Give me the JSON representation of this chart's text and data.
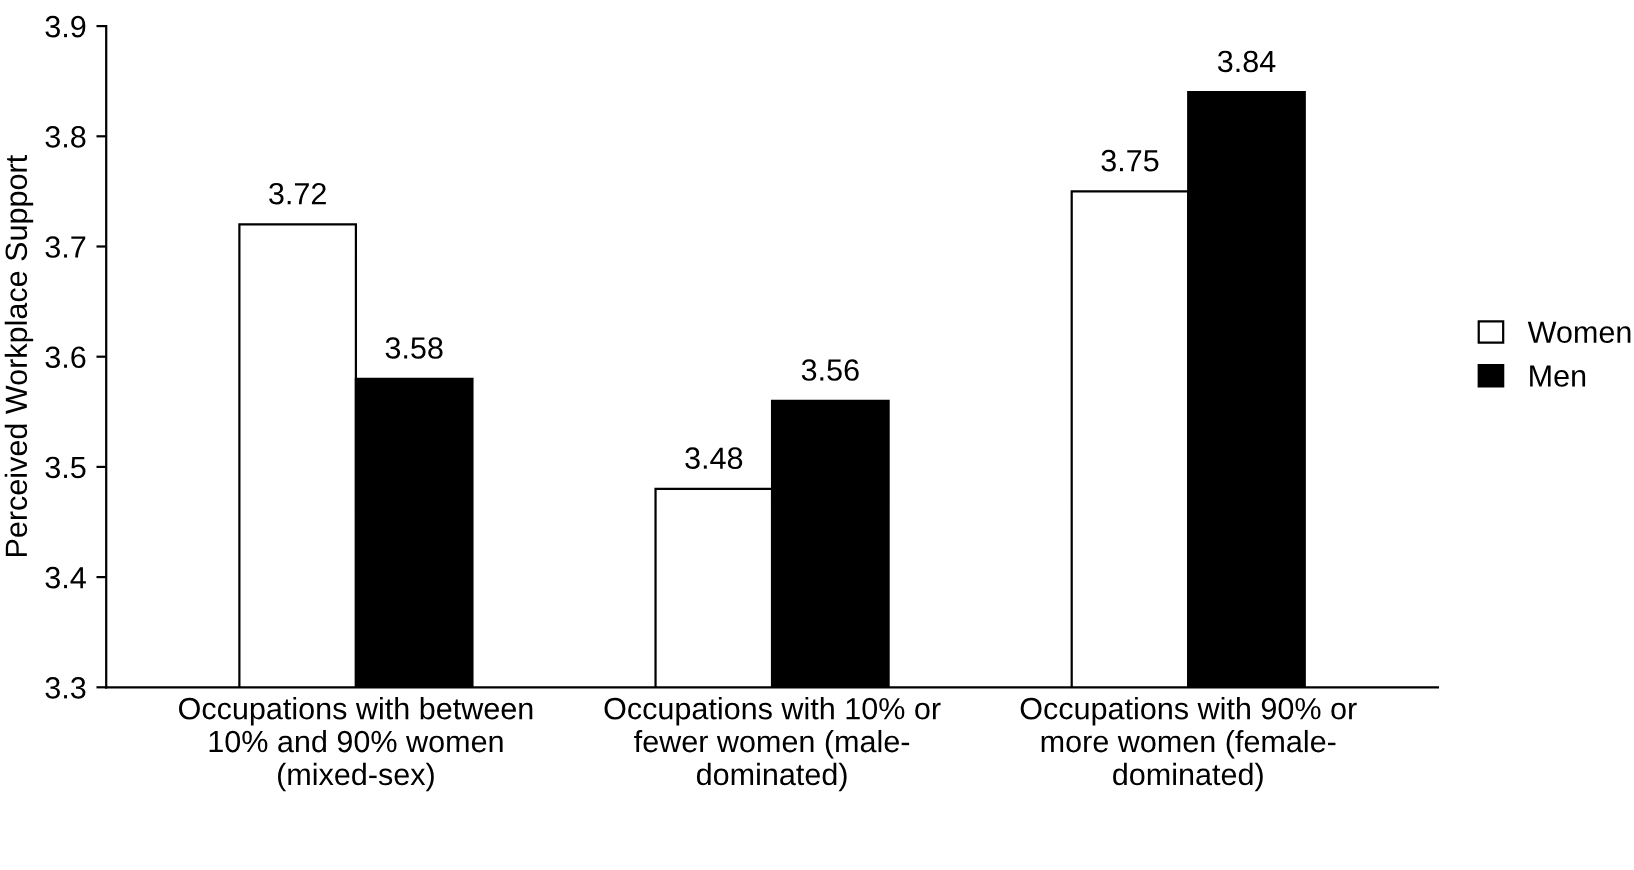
{
  "chart_data": {
    "type": "bar",
    "ylabel": "Perceived Workplace Support",
    "categories": [
      "Occupations with between\n10% and 90% women\n(mixed-sex)",
      "Occupations with 10% or\nfewer women (male-\ndominated)",
      "Occupations with 90% or\nmore women (female-\ndominated)"
    ],
    "series": [
      {
        "name": "Women",
        "color": "#ffffff",
        "values": [
          3.72,
          3.48,
          3.75
        ]
      },
      {
        "name": "Men",
        "color": "#000000",
        "values": [
          3.58,
          3.56,
          3.84
        ]
      }
    ],
    "ylim": [
      3.3,
      3.9
    ],
    "yticks": [
      3.3,
      3.4,
      3.5,
      3.6,
      3.7,
      3.8,
      3.9
    ],
    "data_labels": true,
    "grid": false,
    "legend": "right"
  }
}
